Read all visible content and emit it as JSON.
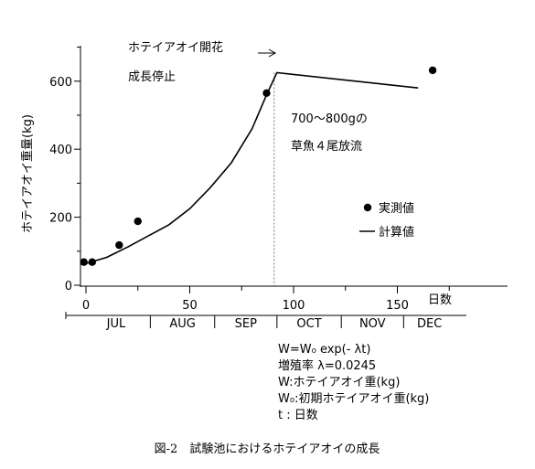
{
  "chart_data": {
    "type": "line",
    "title": "",
    "xlabel": "日数",
    "ylabel": "ホテイアオイ重量(kg)",
    "xlim": [
      -2,
      178
    ],
    "ylim": [
      0,
      700
    ],
    "x_ticks": [
      0,
      50,
      100,
      150
    ],
    "y_ticks": [
      0,
      200,
      400,
      600
    ],
    "grid": false,
    "series": [
      {
        "name": "実測値",
        "kind": "scatter",
        "x": [
          -1,
          3,
          16,
          25,
          87,
          167
        ],
        "y": [
          68,
          68,
          118,
          188,
          565,
          632
        ]
      },
      {
        "name": "計算値",
        "kind": "line",
        "x": [
          -1,
          10,
          20,
          30,
          40,
          50,
          60,
          70,
          80,
          87,
          92,
          160
        ],
        "y": [
          62,
          82,
          112,
          145,
          178,
          225,
          288,
          360,
          460,
          560,
          625,
          580
        ]
      }
    ],
    "months": [
      "JUL",
      "AUG",
      "SEP",
      "OCT",
      "NOV",
      "DEC"
    ],
    "month_boundaries": [
      -2,
      31,
      62,
      92,
      123,
      153,
      178
    ],
    "annotations": {
      "flower": "ホテイアオイ開花",
      "stop": "成長停止",
      "release_1": "700～800gの",
      "release_2": "草魚４尾放流",
      "flower_day": 92
    },
    "legend": {
      "placement": "right",
      "measured": "実測値",
      "calculated": "計算値"
    },
    "formula": [
      "W=W₀ exp(- λt)",
      "増殖率 λ=0.0245",
      "W:ホテイアオイ重(kg)",
      "W₀:初期ホテイアオイ重(kg)",
      "t : 日数"
    ],
    "caption": "図-2　試験池におけるホテイアオイの成長"
  }
}
